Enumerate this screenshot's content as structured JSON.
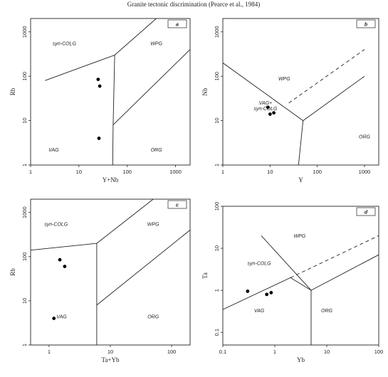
{
  "title": "Granite tectonic discrimination (Pearce et al., 1984)",
  "chart_data": [
    {
      "type": "scatter",
      "panel": "a",
      "xlabel": "Y+Nb",
      "ylabel": "Rb",
      "xscale": "log",
      "yscale": "log",
      "xlim": [
        1,
        2000
      ],
      "ylim": [
        1,
        2000
      ],
      "xticks": [
        1,
        10,
        100,
        1000
      ],
      "yticks": [
        1,
        10,
        100,
        1000
      ],
      "xticklabels": [
        "1",
        "10",
        "100",
        "1000"
      ],
      "yticklabels": [
        "1",
        "10",
        "100",
        "1000"
      ],
      "fields": [
        {
          "label": "syn-COLG",
          "x": 5,
          "y": 500
        },
        {
          "label": "WPG",
          "x": 400,
          "y": 500
        },
        {
          "label": "VAG",
          "x": 3,
          "y": 2
        },
        {
          "label": "ORG",
          "x": 400,
          "y": 2
        }
      ],
      "boundaries": [
        {
          "points": [
            [
              2,
              80
            ],
            [
              55,
              300
            ]
          ],
          "style": "solid"
        },
        {
          "points": [
            [
              55,
              300
            ],
            [
              400,
              2000
            ]
          ],
          "style": "solid"
        },
        {
          "points": [
            [
              55,
              300
            ],
            [
              51,
              8
            ],
            [
              50,
              1
            ]
          ],
          "style": "solid"
        },
        {
          "points": [
            [
              51,
              8
            ],
            [
              2000,
              400
            ]
          ],
          "style": "solid"
        }
      ],
      "series": [
        {
          "values": [
            [
              25,
              85
            ],
            [
              27,
              60
            ],
            [
              26,
              4
            ]
          ]
        }
      ]
    },
    {
      "type": "scatter",
      "panel": "b",
      "xlabel": "Y",
      "ylabel": "Nb",
      "xscale": "log",
      "yscale": "log",
      "xlim": [
        1,
        2000
      ],
      "ylim": [
        1,
        2000
      ],
      "xticks": [
        1,
        10,
        100,
        1000
      ],
      "yticks": [
        1,
        10,
        100,
        1000
      ],
      "xticklabels": [
        "1",
        "10",
        "100",
        "1000"
      ],
      "yticklabels": [
        "1",
        "10",
        "100",
        "1000"
      ],
      "fields": [
        {
          "label": "WPG",
          "x": 20,
          "y": 80
        },
        {
          "label": "VAG+",
          "x": 8,
          "y": 23
        },
        {
          "label": "syn-COLG",
          "x": 8,
          "y": 17
        },
        {
          "label": "ORG",
          "x": 1000,
          "y": 4
        }
      ],
      "boundaries": [
        {
          "points": [
            [
              1,
              200
            ],
            [
              50,
              10
            ]
          ],
          "style": "solid"
        },
        {
          "points": [
            [
              50,
              10
            ],
            [
              1000,
              100
            ]
          ],
          "style": "solid"
        },
        {
          "points": [
            [
              50,
              10
            ],
            [
              40,
              1
            ]
          ],
          "style": "solid"
        },
        {
          "points": [
            [
              25,
              25
            ],
            [
              1000,
              400
            ]
          ],
          "style": "dashed"
        }
      ],
      "series": [
        {
          "values": [
            [
              9,
              20
            ],
            [
              10,
              14
            ],
            [
              12,
              15
            ]
          ]
        }
      ]
    },
    {
      "type": "scatter",
      "panel": "c",
      "xlabel": "Ta+Yb",
      "ylabel": "Rb",
      "xscale": "log",
      "yscale": "log",
      "xlim": [
        0.5,
        200
      ],
      "ylim": [
        1,
        2000
      ],
      "xticks": [
        1,
        10,
        100
      ],
      "yticks": [
        1,
        10,
        100,
        1000
      ],
      "xticklabels": [
        "1",
        "10",
        "100"
      ],
      "yticklabels": [
        "1",
        "10",
        "100",
        "1000"
      ],
      "fields": [
        {
          "label": "syn-COLG",
          "x": 1.3,
          "y": 500
        },
        {
          "label": "WPG",
          "x": 50,
          "y": 500
        },
        {
          "label": "VAG",
          "x": 1.6,
          "y": 4
        },
        {
          "label": "ORG",
          "x": 50,
          "y": 4
        }
      ],
      "boundaries": [
        {
          "points": [
            [
              0.5,
              140
            ],
            [
              6,
              200
            ]
          ],
          "style": "solid"
        },
        {
          "points": [
            [
              6,
              200
            ],
            [
              50,
              2000
            ]
          ],
          "style": "solid"
        },
        {
          "points": [
            [
              6,
              200
            ],
            [
              6,
              1
            ]
          ],
          "style": "solid"
        },
        {
          "points": [
            [
              6,
              8
            ],
            [
              200,
              400
            ]
          ],
          "style": "solid"
        }
      ],
      "series": [
        {
          "values": [
            [
              1.5,
              85
            ],
            [
              1.8,
              60
            ],
            [
              1.2,
              4
            ]
          ]
        }
      ]
    },
    {
      "type": "scatter",
      "panel": "d",
      "xlabel": "Yb",
      "ylabel": "Ta",
      "xscale": "log",
      "yscale": "log",
      "xlim": [
        0.1,
        100
      ],
      "ylim": [
        0.05,
        100
      ],
      "xticks": [
        0.1,
        1,
        10,
        100
      ],
      "yticks": [
        0.1,
        1,
        10,
        100
      ],
      "xticklabels": [
        "0.1",
        "1",
        "10",
        "100"
      ],
      "yticklabels": [
        "0.1",
        "1",
        "10",
        "100"
      ],
      "fields": [
        {
          "label": "WPG",
          "x": 3,
          "y": 18
        },
        {
          "label": "syn-COLG",
          "x": 0.5,
          "y": 4
        },
        {
          "label": "VAG",
          "x": 0.5,
          "y": 0.3
        },
        {
          "label": "ORG",
          "x": 10,
          "y": 0.3
        }
      ],
      "boundaries": [
        {
          "points": [
            [
              0.1,
              0.35
            ],
            [
              2,
              2
            ],
            [
              5,
              1
            ],
            [
              100,
              7
            ]
          ],
          "style": "solid"
        },
        {
          "points": [
            [
              0.55,
              20
            ],
            [
              5,
              1
            ]
          ],
          "style": "solid"
        },
        {
          "points": [
            [
              5,
              1
            ],
            [
              5,
              0.05
            ]
          ],
          "style": "solid"
        },
        {
          "points": [
            [
              2,
              2
            ],
            [
              100,
              20
            ]
          ],
          "style": "dashed"
        }
      ],
      "series": [
        {
          "values": [
            [
              0.3,
              0.95
            ],
            [
              0.7,
              0.8
            ],
            [
              0.85,
              0.88
            ]
          ]
        }
      ]
    }
  ]
}
